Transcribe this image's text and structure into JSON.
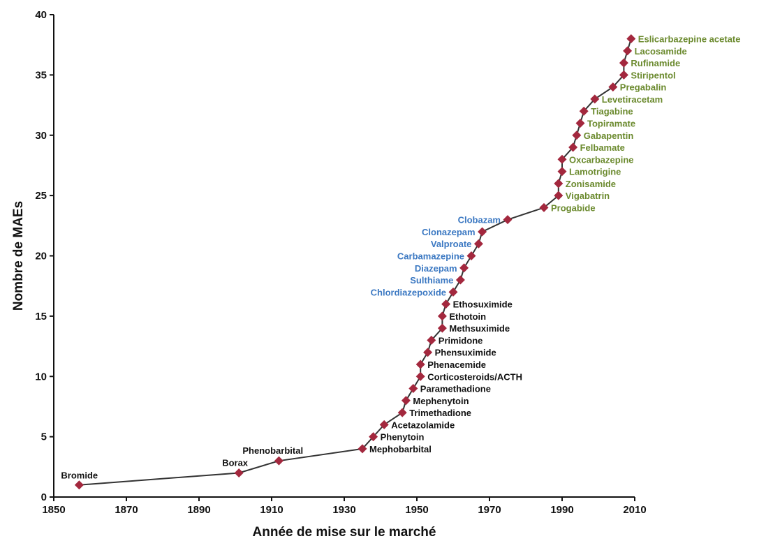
{
  "chart_data": {
    "type": "line",
    "title": "",
    "xlabel": "Année de mise sur le marché",
    "ylabel": "Nombre de MAEs",
    "xlim": [
      1850,
      2010
    ],
    "ylim": [
      0,
      40
    ],
    "x_ticks": [
      1850,
      1870,
      1890,
      1910,
      1930,
      1950,
      1970,
      1990,
      2010
    ],
    "y_ticks": [
      0,
      5,
      10,
      15,
      20,
      25,
      30,
      35,
      40
    ],
    "grid": false,
    "colors": {
      "line": "#333333",
      "marker": "#a3283e",
      "old": "#111111",
      "mid": "#3b78c2",
      "new": "#6b8a2e"
    },
    "series": [
      {
        "points": [
          {
            "x": 1857,
            "y": 1,
            "label": "Bromide",
            "group": "old"
          },
          {
            "x": 1901,
            "y": 2,
            "label": "Borax",
            "group": "old"
          },
          {
            "x": 1912,
            "y": 3,
            "label": "Phenobarbital",
            "group": "old"
          },
          {
            "x": 1935,
            "y": 4,
            "label": "Mephobarbital",
            "group": "old"
          },
          {
            "x": 1938,
            "y": 5,
            "label": "Phenytoin",
            "group": "old"
          },
          {
            "x": 1941,
            "y": 6,
            "label": "Acetazolamide",
            "group": "old"
          },
          {
            "x": 1946,
            "y": 7,
            "label": "Trimethadione",
            "group": "old"
          },
          {
            "x": 1947,
            "y": 8,
            "label": "Mephenytoin",
            "group": "old"
          },
          {
            "x": 1949,
            "y": 9,
            "label": "Paramethadione",
            "group": "old"
          },
          {
            "x": 1951,
            "y": 10,
            "label": "Corticosteroids/ACTH",
            "group": "old"
          },
          {
            "x": 1951,
            "y": 11,
            "label": "Phenacemide",
            "group": "old"
          },
          {
            "x": 1953,
            "y": 12,
            "label": "Phensuximide",
            "group": "old"
          },
          {
            "x": 1954,
            "y": 13,
            "label": "Primidone",
            "group": "old"
          },
          {
            "x": 1957,
            "y": 14,
            "label": "Methsuximide",
            "group": "old"
          },
          {
            "x": 1957,
            "y": 15,
            "label": "Ethotoin",
            "group": "old"
          },
          {
            "x": 1958,
            "y": 16,
            "label": "Ethosuximide",
            "group": "old"
          },
          {
            "x": 1960,
            "y": 17,
            "label": "Chlordiazepoxide",
            "group": "mid"
          },
          {
            "x": 1962,
            "y": 18,
            "label": "Sulthiame",
            "group": "mid"
          },
          {
            "x": 1963,
            "y": 19,
            "label": "Diazepam",
            "group": "mid"
          },
          {
            "x": 1965,
            "y": 20,
            "label": "Carbamazepine",
            "group": "mid"
          },
          {
            "x": 1967,
            "y": 21,
            "label": "Valproate",
            "group": "mid"
          },
          {
            "x": 1968,
            "y": 22,
            "label": "Clonazepam",
            "group": "mid"
          },
          {
            "x": 1975,
            "y": 23,
            "label": "Clobazam",
            "group": "mid"
          },
          {
            "x": 1985,
            "y": 24,
            "label": "Progabide",
            "group": "new"
          },
          {
            "x": 1989,
            "y": 25,
            "label": "Vigabatrin",
            "group": "new"
          },
          {
            "x": 1989,
            "y": 26,
            "label": "Zonisamide",
            "group": "new"
          },
          {
            "x": 1990,
            "y": 27,
            "label": "Lamotrigine",
            "group": "new"
          },
          {
            "x": 1990,
            "y": 28,
            "label": "Oxcarbazepine",
            "group": "new"
          },
          {
            "x": 1993,
            "y": 29,
            "label": "Felbamate",
            "group": "new"
          },
          {
            "x": 1994,
            "y": 30,
            "label": "Gabapentin",
            "group": "new"
          },
          {
            "x": 1995,
            "y": 31,
            "label": "Topiramate",
            "group": "new"
          },
          {
            "x": 1996,
            "y": 32,
            "label": "Tiagabine",
            "group": "new"
          },
          {
            "x": 1999,
            "y": 33,
            "label": "Levetiracetam",
            "group": "new"
          },
          {
            "x": 2004,
            "y": 34,
            "label": "Pregabalin",
            "group": "new"
          },
          {
            "x": 2007,
            "y": 35,
            "label": "Stiripentol",
            "group": "new"
          },
          {
            "x": 2007,
            "y": 36,
            "label": "Rufinamide",
            "group": "new"
          },
          {
            "x": 2008,
            "y": 37,
            "label": "Lacosamide",
            "group": "new"
          },
          {
            "x": 2009,
            "y": 38,
            "label": "Eslicarbazepine acetate",
            "group": "new"
          }
        ]
      }
    ]
  }
}
